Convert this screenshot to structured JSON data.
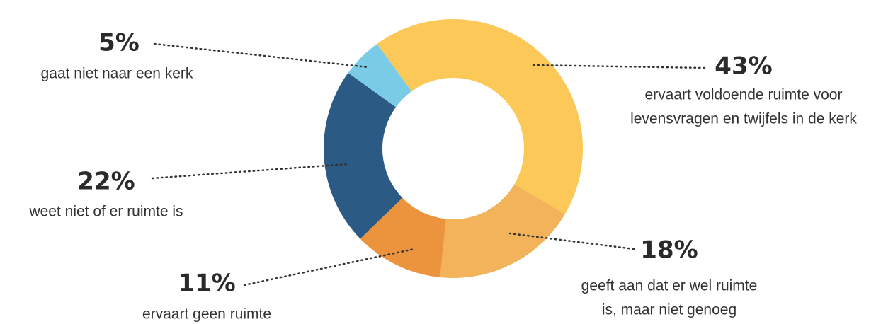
{
  "chart_data": {
    "type": "donut",
    "values": [
      43,
      18,
      11,
      22,
      5
    ],
    "value_labels": [
      "43%",
      "18%",
      "11%",
      "22%",
      "5%"
    ],
    "labels": [
      [
        "ervaart voldoende ruimte voor",
        "levensvragen en twijfels in de kerk"
      ],
      [
        "geeft aan dat er wel ruimte",
        "is, maar niet genoeg"
      ],
      [
        "ervaart geen ruimte"
      ],
      [
        "weet niet of er ruimte is"
      ],
      [
        "gaat niet naar een kerk"
      ]
    ],
    "colors": [
      "#fcc857",
      "#f2b35a",
      "#ec933e",
      "#2b5a85",
      "#7acbe6"
    ]
  }
}
